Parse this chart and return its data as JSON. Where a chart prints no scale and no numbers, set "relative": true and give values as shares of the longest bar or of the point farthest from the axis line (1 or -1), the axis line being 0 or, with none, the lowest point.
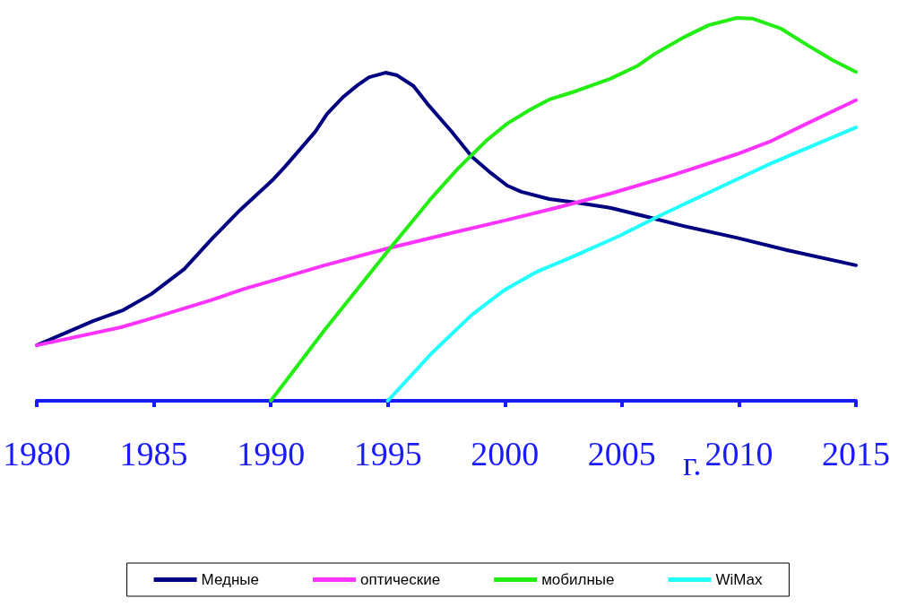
{
  "chart_data": {
    "type": "line",
    "relative": true,
    "xlabel": "г.",
    "xlim": [
      1980,
      2015
    ],
    "xticks": [
      1980,
      1985,
      1990,
      1995,
      2000,
      2005,
      2010,
      2015
    ],
    "legend": "bottom",
    "marker": "none",
    "line_style": "solid",
    "grid": false,
    "series": [
      {
        "name": "Медные",
        "color": "#000080",
        "x": [
          1980,
          1982.4,
          1983.7,
          1984.9,
          1986.3,
          1987.5,
          1988.7,
          1990.1,
          1990.6,
          1991.9,
          1992.4,
          1993.1,
          1993.7,
          1994.2,
          1994.9,
          1995.4,
          1996.1,
          1996.7,
          1997.7,
          1998.6,
          1999.4,
          2000.1,
          2000.7,
          2001.9,
          2003.0,
          2004.5,
          2006.1,
          2007.6,
          2009.9,
          2012.1,
          2015
        ],
        "values": [
          0.145,
          0.208,
          0.237,
          0.279,
          0.344,
          0.424,
          0.499,
          0.578,
          0.611,
          0.703,
          0.749,
          0.794,
          0.824,
          0.845,
          0.857,
          0.85,
          0.822,
          0.775,
          0.705,
          0.637,
          0.595,
          0.562,
          0.546,
          0.527,
          0.518,
          0.504,
          0.48,
          0.457,
          0.426,
          0.393,
          0.354
        ]
      },
      {
        "name": "оптические",
        "color": "#ff33ff",
        "x": [
          1980,
          1983.6,
          1984.9,
          1987.4,
          1988.9,
          1990.1,
          1992.3,
          1995.0,
          1997.7,
          2000.0,
          2002.2,
          2004.5,
          2007.2,
          2009.9,
          2011.4,
          2012.9,
          2015
        ],
        "values": [
          0.145,
          0.192,
          0.215,
          0.262,
          0.293,
          0.314,
          0.354,
          0.398,
          0.438,
          0.471,
          0.504,
          0.541,
          0.59,
          0.644,
          0.679,
          0.724,
          0.785
        ]
      },
      {
        "name": "мобилные",
        "color": "#22ee11",
        "x": [
          1990.0,
          1992.3,
          1995.0,
          1996.9,
          1998.0,
          1999.2,
          2000.1,
          2001.1,
          2001.9,
          2003.0,
          2004.5,
          2005.7,
          2006.4,
          2007.6,
          2008.7,
          2009.9,
          2010.6,
          2011.8,
          2012.9,
          2014.0,
          2015
        ],
        "values": [
          0,
          0.185,
          0.391,
          0.532,
          0.607,
          0.679,
          0.724,
          0.761,
          0.787,
          0.808,
          0.841,
          0.876,
          0.906,
          0.948,
          0.981,
          1.0,
          0.998,
          0.972,
          0.93,
          0.89,
          0.859
        ]
      },
      {
        "name": "WiMax",
        "color": "#22ffff",
        "x": [
          1995.0,
          1996.9,
          1998.6,
          2000.0,
          2001.3,
          2003.0,
          2004.9,
          2006.8,
          2009.1,
          2011.4,
          2015
        ],
        "values": [
          0,
          0.126,
          0.225,
          0.29,
          0.335,
          0.379,
          0.431,
          0.489,
          0.555,
          0.621,
          0.714
        ]
      }
    ]
  }
}
